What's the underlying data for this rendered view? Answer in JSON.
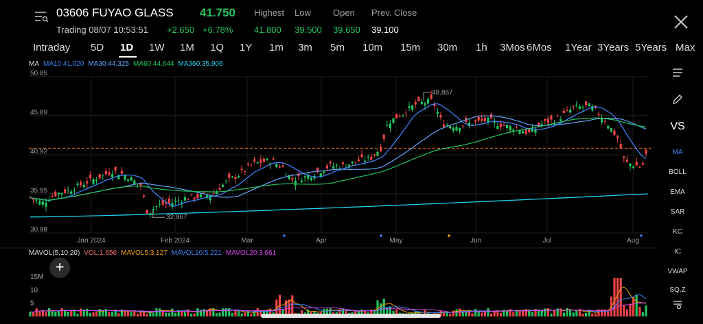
{
  "header": {
    "title": "03606 FUYAO GLASS",
    "price": "41.750",
    "status": "Trading 08/07 10:53:51",
    "change": "+2.650",
    "change_pct": "+6.78%",
    "stats": [
      {
        "label": "Highest",
        "value": "41.800",
        "color": "#22c55e"
      },
      {
        "label": "Low",
        "value": "39.500",
        "color": "#22c55e"
      },
      {
        "label": "Open",
        "value": "39.650",
        "color": "#22c55e"
      },
      {
        "label": "Prev. Close",
        "value": "39.100",
        "color": "#ffffff"
      }
    ]
  },
  "tabs": [
    "Intraday",
    "5D",
    "1D",
    "1W",
    "1M",
    "1Q",
    "1Y",
    "1m",
    "3m",
    "5m",
    "10m",
    "15m",
    "30m",
    "1h",
    "3Mos",
    "6Mos",
    "1Year",
    "3Years",
    "5Years",
    "Max"
  ],
  "active_tab": "1D",
  "ma_legend": [
    {
      "text": "MA",
      "color": "#dddddd"
    },
    {
      "text": "MA10:41.020",
      "color": "#3b82f6"
    },
    {
      "text": "MA30:44.325",
      "color": "#60a5fa"
    },
    {
      "text": "MA60:44.644",
      "color": "#22c55e"
    },
    {
      "text": "MA360:35.906",
      "color": "#22d3ee"
    }
  ],
  "y_axis": [
    "50.85",
    "45.89",
    "40.92",
    "35.95",
    "30.98"
  ],
  "x_axis": [
    "Jan 2024",
    "Feb 2024",
    "Mar",
    "Apr",
    "May",
    "Jun",
    "Jul",
    "Aug"
  ],
  "annotations": {
    "high": "48.867",
    "low": "32.967"
  },
  "sidebar": [
    "MA",
    "BOLL",
    "EMA",
    "SAR",
    "KC",
    "IC",
    "VWAP",
    "SQ.Z"
  ],
  "sidebar_vs": "VS",
  "mavol_legend": [
    {
      "text": "MAVOL(5,10,20)",
      "color": "#dddddd"
    },
    {
      "text": "VOL:1.656",
      "color": "#f87171"
    },
    {
      "text": "MAVOL5:3.127",
      "color": "#f59e0b"
    },
    {
      "text": "MAVOL10:5.221",
      "color": "#3b82f6"
    },
    {
      "text": "MAVOL20:3.661",
      "color": "#d946ef"
    }
  ],
  "vol_axis": [
    "15M",
    "10",
    "5"
  ],
  "chart_data": {
    "type": "candlestick",
    "y_range": [
      30.98,
      50.85
    ],
    "ma": {
      "MA10": 41.02,
      "MA30": 44.325,
      "MA60": 44.644,
      "MA360": 35.906
    },
    "annotations": {
      "high": 48.867,
      "low": 32.967
    },
    "last_price": 41.75
  }
}
